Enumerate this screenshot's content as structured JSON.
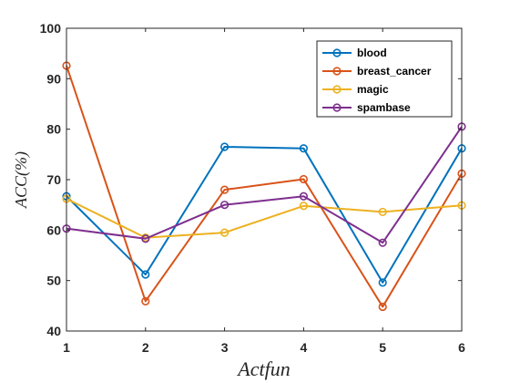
{
  "chart_data": {
    "type": "line",
    "xlabel": "Actfun",
    "ylabel": "ACC(%)",
    "x": [
      1,
      2,
      3,
      4,
      5,
      6
    ],
    "xlim": [
      1,
      6
    ],
    "ylim": [
      40,
      100
    ],
    "xticks": [
      "1",
      "2",
      "3",
      "4",
      "5",
      "6"
    ],
    "yticks": [
      "40",
      "50",
      "60",
      "70",
      "80",
      "90",
      "100"
    ],
    "legend_position": "top-right",
    "grid": false,
    "series": [
      {
        "name": "blood",
        "color": "#0072BD",
        "values": [
          66.7,
          51.2,
          76.5,
          76.2,
          49.6,
          76.2
        ]
      },
      {
        "name": "breast_cancer",
        "color": "#D95319",
        "values": [
          92.6,
          45.9,
          68.0,
          70.1,
          44.8,
          71.2
        ]
      },
      {
        "name": "magic",
        "color": "#EDB120",
        "values": [
          66.2,
          58.5,
          59.5,
          64.8,
          63.6,
          64.9
        ]
      },
      {
        "name": "spambase",
        "color": "#7E2F8E",
        "values": [
          60.3,
          58.3,
          65.0,
          66.7,
          57.5,
          80.5
        ]
      }
    ]
  }
}
